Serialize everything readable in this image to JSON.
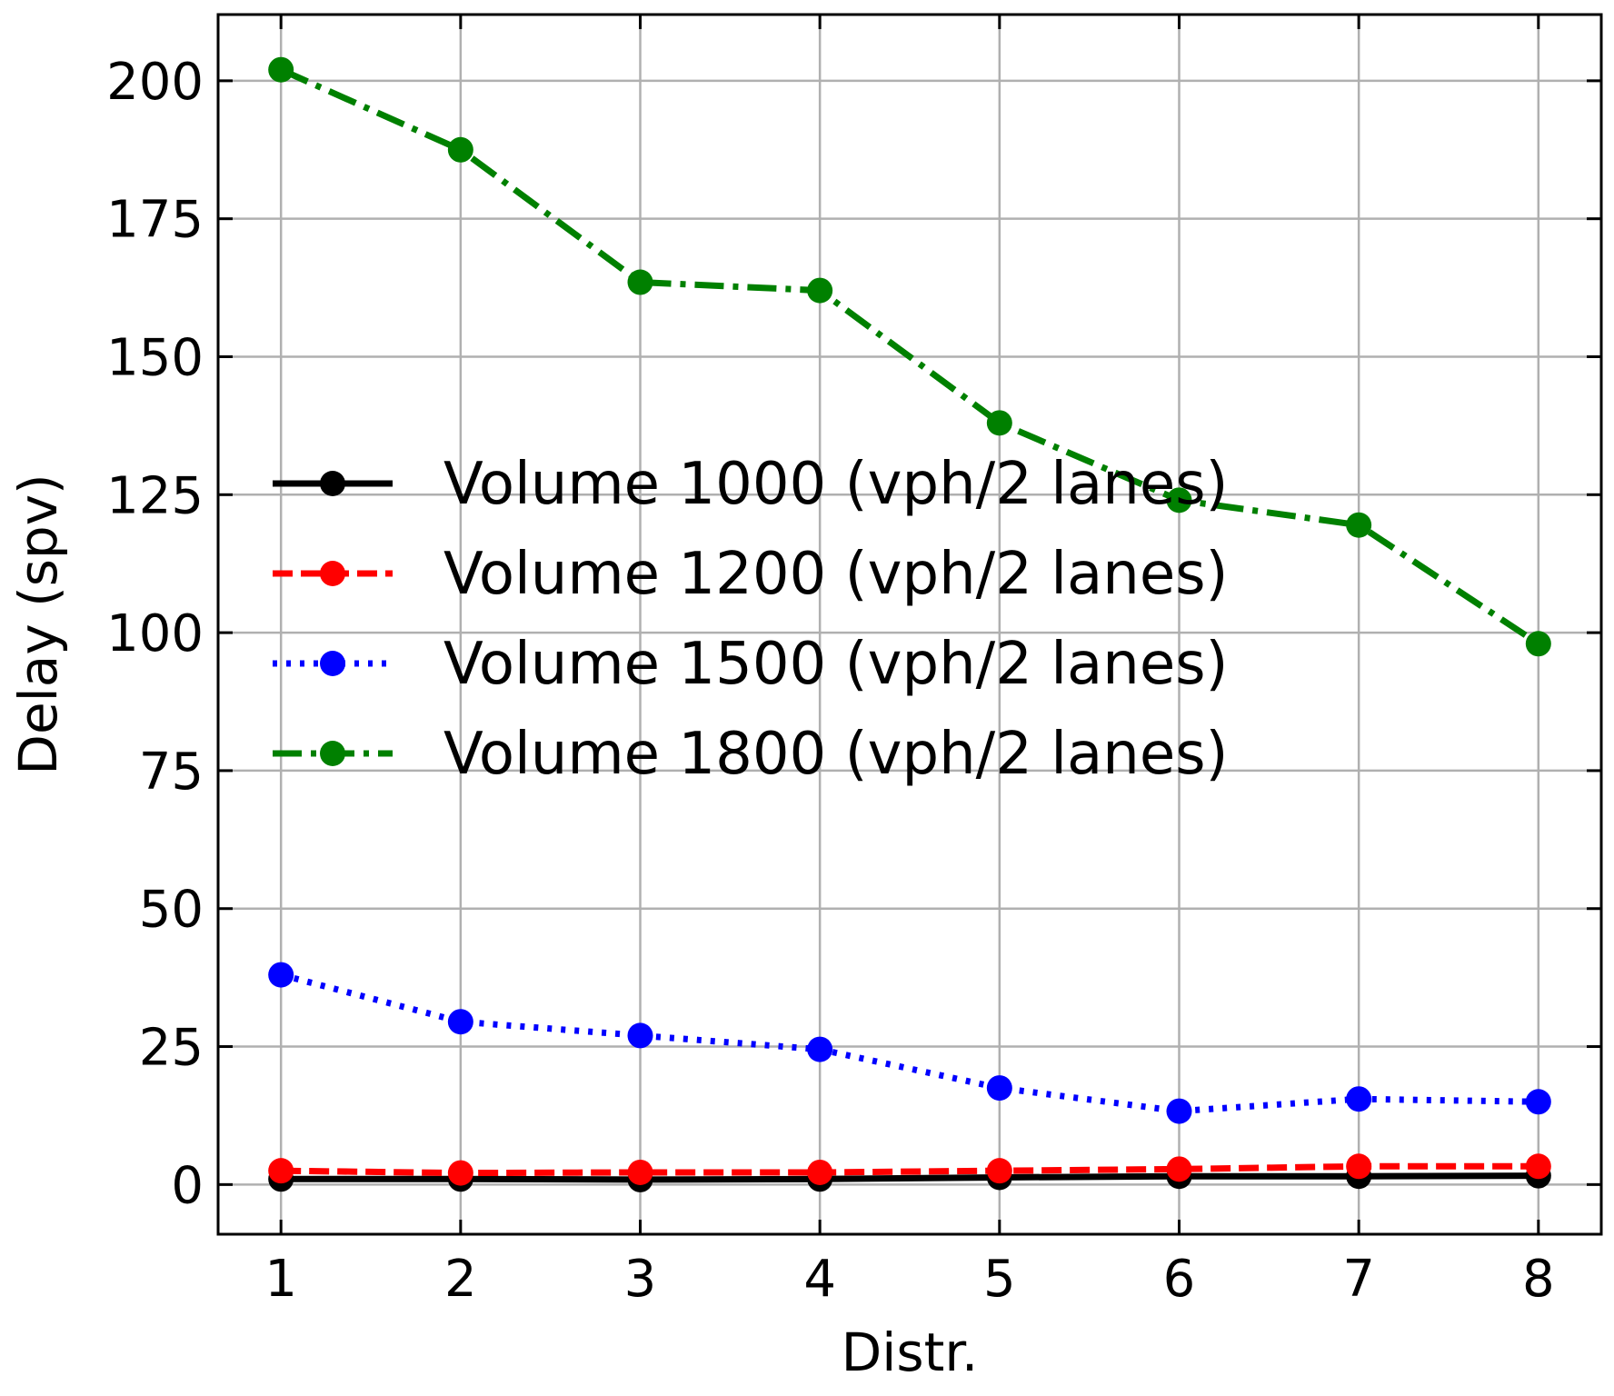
{
  "chart_data": {
    "type": "line",
    "title": "",
    "xlabel": "Distr.",
    "ylabel": "Delay (spv)",
    "x": [
      1,
      2,
      3,
      4,
      5,
      6,
      7,
      8
    ],
    "xlim": [
      0.65,
      8.35
    ],
    "ylim": [
      -9,
      212
    ],
    "xticks": [
      1,
      2,
      3,
      4,
      5,
      6,
      7,
      8
    ],
    "yticks": [
      0,
      25,
      50,
      75,
      100,
      125,
      150,
      175,
      200
    ],
    "grid": true,
    "legend_position": "center-left",
    "series": [
      {
        "name": "Volume 1000 (vph/2 lanes)",
        "color": "#000000",
        "linestyle": "solid",
        "values": [
          1.0,
          1.0,
          0.9,
          1.0,
          1.3,
          1.5,
          1.5,
          1.6
        ]
      },
      {
        "name": "Volume 1200 (vph/2 lanes)",
        "color": "#ff0000",
        "linestyle": "dashed",
        "values": [
          2.5,
          2.1,
          2.2,
          2.2,
          2.5,
          2.8,
          3.3,
          3.3
        ]
      },
      {
        "name": "Volume 1500 (vph/2 lanes)",
        "color": "#0000ff",
        "linestyle": "dotted",
        "values": [
          38.0,
          29.5,
          27.0,
          24.5,
          17.5,
          13.3,
          15.5,
          15.0
        ]
      },
      {
        "name": "Volume 1800 (vph/2 lanes)",
        "color": "#008000",
        "linestyle": "dashdot",
        "values": [
          202.0,
          187.5,
          163.5,
          162.0,
          138.0,
          124.0,
          119.5,
          98.0
        ]
      }
    ]
  }
}
